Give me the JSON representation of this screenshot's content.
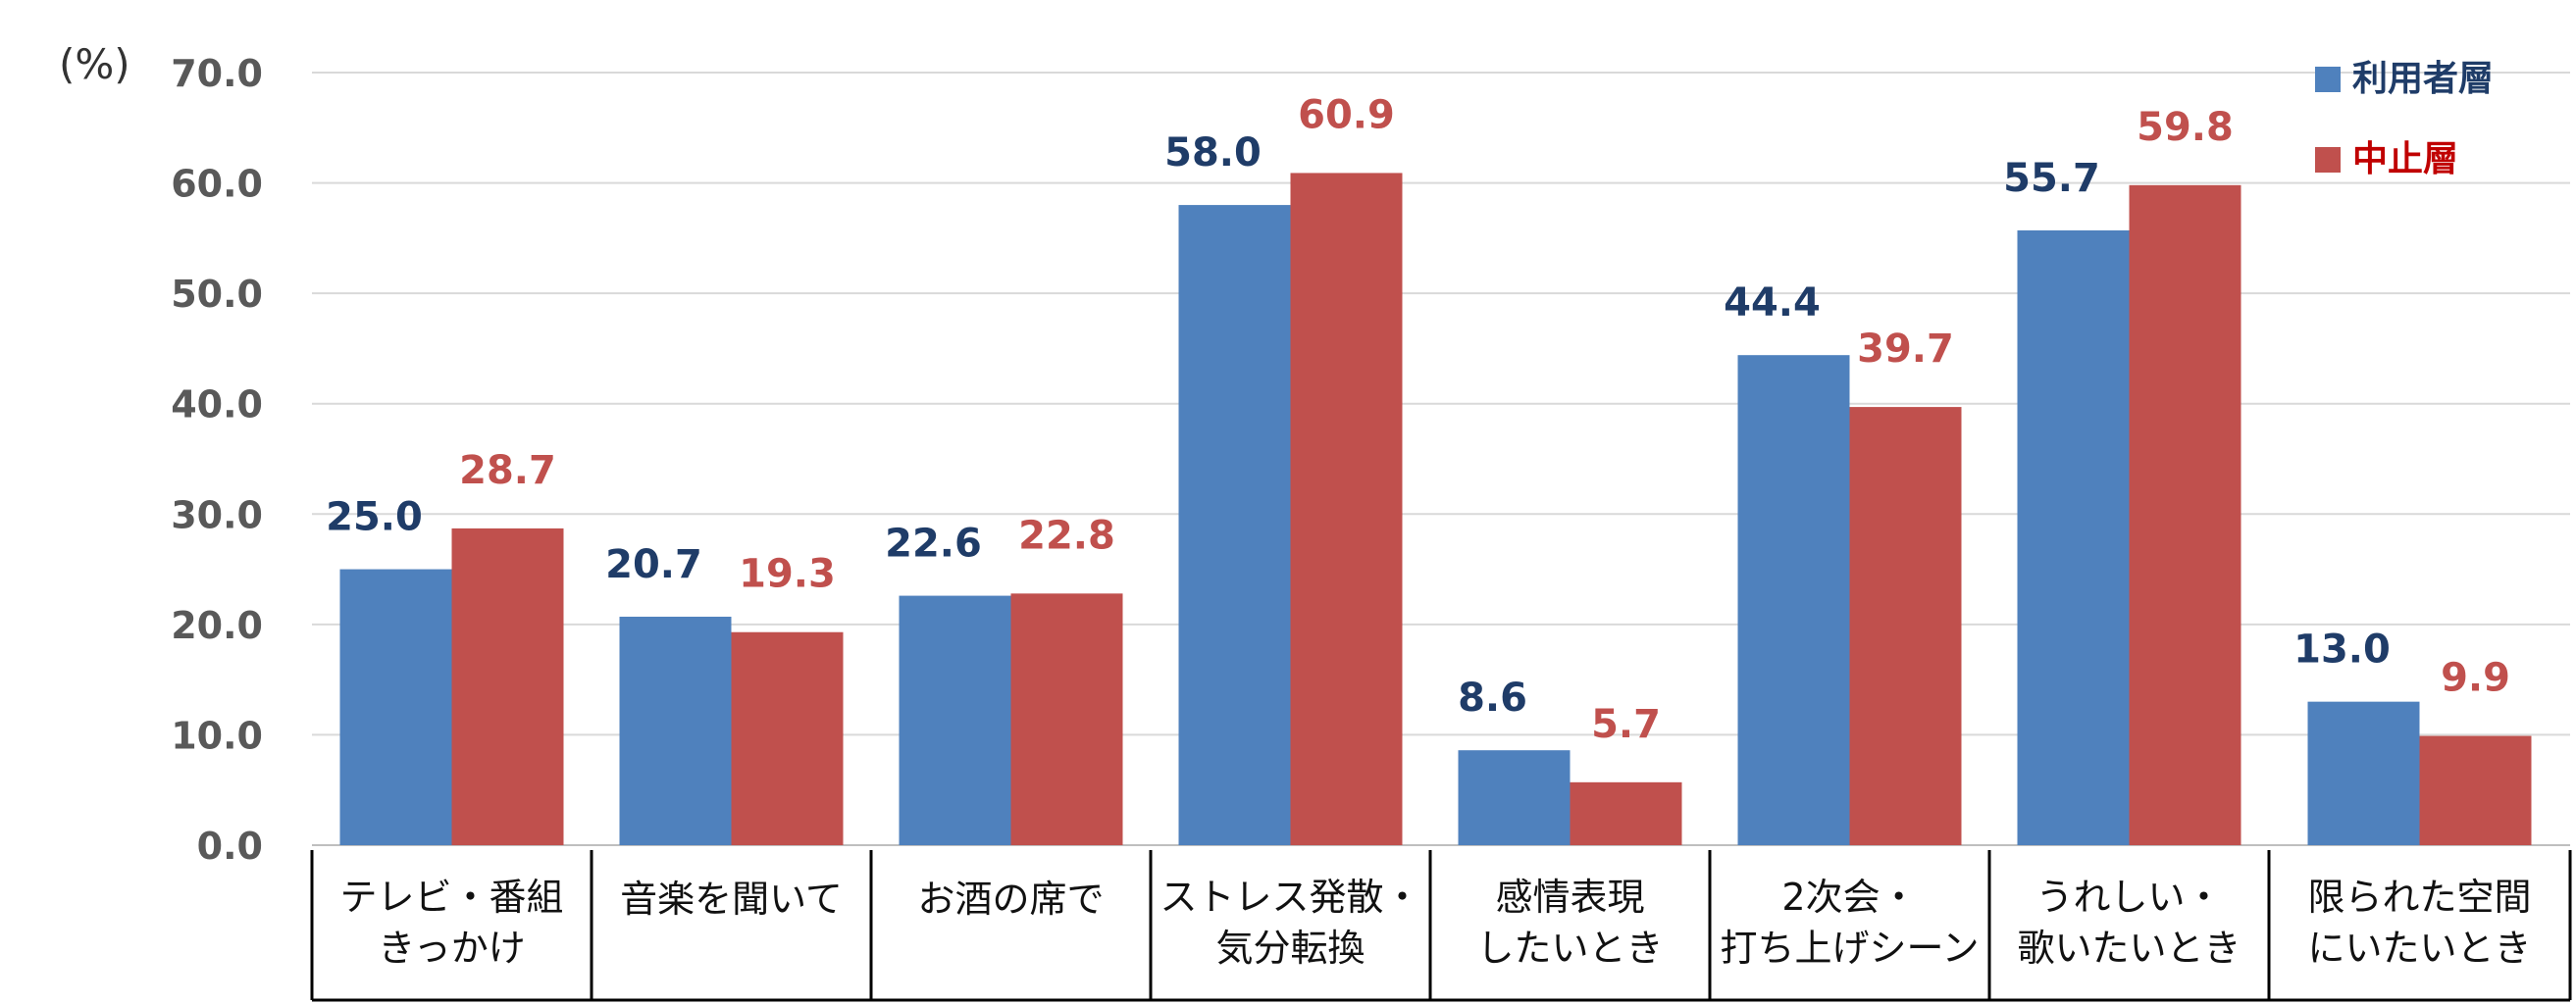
{
  "chart_data": {
    "type": "bar",
    "unit_label": "(%)",
    "categories": [
      [
        "テレビ・番組",
        "きっかけ"
      ],
      [
        "音楽を聞いて"
      ],
      [
        "お酒の席で"
      ],
      [
        "ストレス発散・",
        "気分転換"
      ],
      [
        "感情表現",
        "したいとき"
      ],
      [
        "2次会・",
        "打ち上げシーン"
      ],
      [
        "うれしい・",
        "歌いたいとき"
      ],
      [
        "限られた空間",
        "にいたいとき"
      ]
    ],
    "series": [
      {
        "name": "利用者層",
        "color": "#4f81bd",
        "label_color": "#1f3c68",
        "values": [
          25.0,
          20.7,
          22.6,
          58.0,
          8.6,
          44.4,
          55.7,
          13.0
        ],
        "labels": [
          "25.0",
          "20.7",
          "22.6",
          "58.0",
          "8.6",
          "44.4",
          "55.7",
          "13.0"
        ]
      },
      {
        "name": "中止層",
        "color": "#c0504d",
        "label_color": "#c0504d",
        "legend_color": "#c00000",
        "values": [
          28.7,
          19.3,
          22.8,
          60.9,
          5.7,
          39.7,
          59.8,
          9.9
        ],
        "labels": [
          "28.7",
          "19.3",
          "22.8",
          "60.9",
          "5.7",
          "39.7",
          "59.8",
          "9.9"
        ]
      }
    ],
    "ylim": [
      0,
      70
    ],
    "yticks": [
      "0.0",
      "10.0",
      "20.0",
      "30.0",
      "40.0",
      "50.0",
      "60.0",
      "70.0"
    ],
    "grid": true,
    "legend": "top-right",
    "category_label_table": true
  }
}
